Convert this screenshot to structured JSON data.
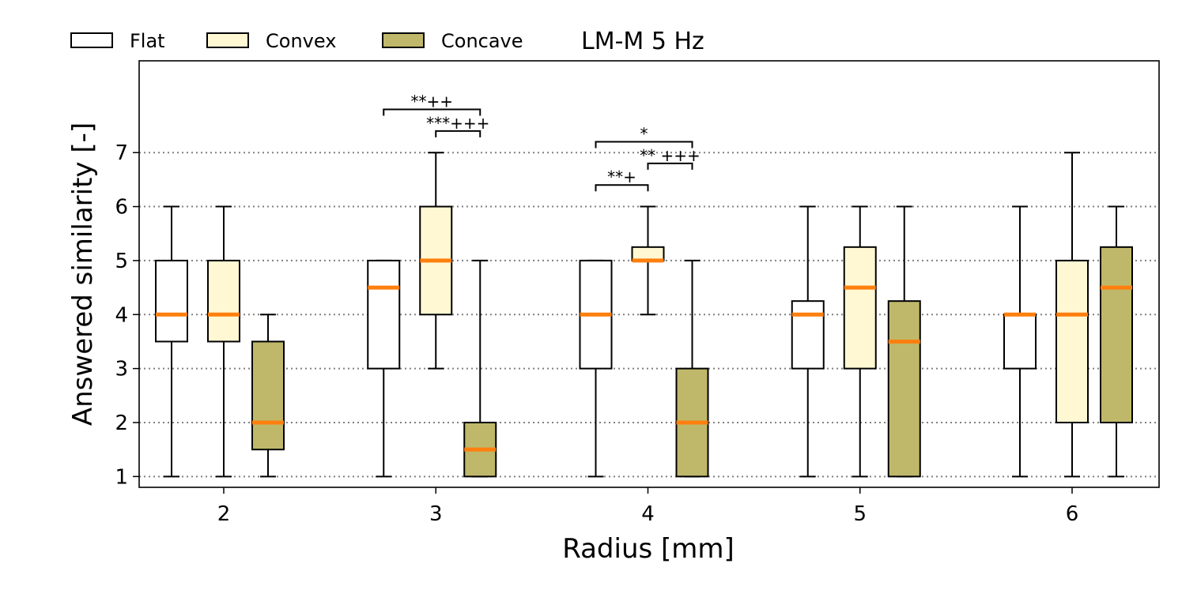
{
  "chart_data": {
    "type": "boxplot",
    "title": "LM-M 5 Hz",
    "xlabel": "Radius [mm]",
    "ylabel": "Answered similarity [-]",
    "categories": [
      "2",
      "3",
      "4",
      "5",
      "6"
    ],
    "ylim": [
      0.8,
      8.7
    ],
    "yticks": [
      "1",
      "2",
      "3",
      "4",
      "5",
      "6",
      "7"
    ],
    "grid": "horizontal-dotted",
    "legend_position": "top-left",
    "colors": {
      "Flat": "#ffffff",
      "Convex": "#fff8d2",
      "Concave": "#bfb86a",
      "median": "#ff7f0e"
    },
    "series": [
      {
        "name": "Flat",
        "boxes": [
          {
            "category": "2",
            "whislo": 1,
            "q1": 3.5,
            "med": 4,
            "q3": 5,
            "whishi": 6
          },
          {
            "category": "3",
            "whislo": 1,
            "q1": 3,
            "med": 4.5,
            "q3": 5,
            "whishi": 5
          },
          {
            "category": "4",
            "whislo": 1,
            "q1": 3,
            "med": 4,
            "q3": 5,
            "whishi": 5
          },
          {
            "category": "5",
            "whislo": 1,
            "q1": 3,
            "med": 4,
            "q3": 4.25,
            "whishi": 6
          },
          {
            "category": "6",
            "whislo": 1,
            "q1": 3,
            "med": 4,
            "q3": 4,
            "whishi": 6
          }
        ]
      },
      {
        "name": "Convex",
        "boxes": [
          {
            "category": "2",
            "whislo": 1,
            "q1": 3.5,
            "med": 4,
            "q3": 5,
            "whishi": 6
          },
          {
            "category": "3",
            "whislo": 3,
            "q1": 4,
            "med": 5,
            "q3": 6,
            "whishi": 7
          },
          {
            "category": "4",
            "whislo": 4,
            "q1": 5,
            "med": 5,
            "q3": 5.25,
            "whishi": 6
          },
          {
            "category": "5",
            "whislo": 1,
            "q1": 3,
            "med": 4.5,
            "q3": 5.25,
            "whishi": 6
          },
          {
            "category": "6",
            "whislo": 1,
            "q1": 2,
            "med": 4,
            "q3": 5,
            "whishi": 7
          }
        ]
      },
      {
        "name": "Concave",
        "boxes": [
          {
            "category": "2",
            "whislo": 1,
            "q1": 1.5,
            "med": 2,
            "q3": 3.5,
            "whishi": 4
          },
          {
            "category": "3",
            "whislo": 1,
            "q1": 1,
            "med": 1.5,
            "q3": 2,
            "whishi": 5
          },
          {
            "category": "4",
            "whislo": 1,
            "q1": 1,
            "med": 2,
            "q3": 3,
            "whishi": 5
          },
          {
            "category": "5",
            "whislo": 1,
            "q1": 1,
            "med": 3.5,
            "q3": 4.25,
            "whishi": 6
          },
          {
            "category": "6",
            "whislo": 1,
            "q1": 2,
            "med": 4.5,
            "q3": 5.25,
            "whishi": 6
          }
        ]
      }
    ],
    "significance": [
      {
        "category": "3",
        "from": "Flat",
        "to": "Concave",
        "y": 7.8,
        "label": "**++"
      },
      {
        "category": "3",
        "from": "Convex",
        "to": "Concave",
        "y": 7.4,
        "label": "***+++"
      },
      {
        "category": "4",
        "from": "Flat",
        "to": "Concave",
        "y": 7.2,
        "label": "*"
      },
      {
        "category": "4",
        "from": "Convex",
        "to": "Concave",
        "y": 6.8,
        "label": "** +++"
      },
      {
        "category": "4",
        "from": "Flat",
        "to": "Convex",
        "y": 6.4,
        "label": "**+"
      }
    ]
  }
}
